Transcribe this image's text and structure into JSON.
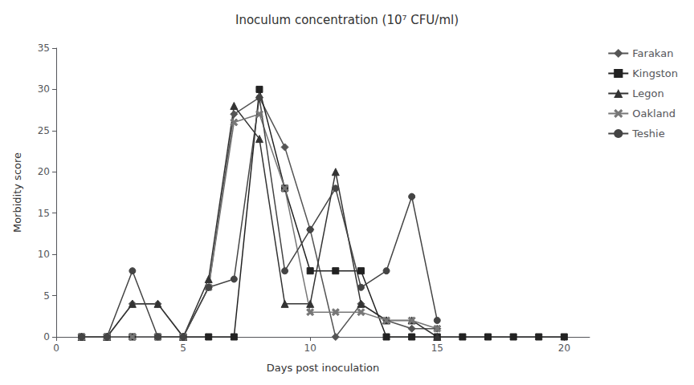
{
  "chart_data": {
    "type": "line",
    "title": "Inoculum concentration (10⁷ CFU/ml)",
    "xlabel": "Days post inoculation",
    "ylabel": "Morbidity score",
    "xlim": [
      0,
      21
    ],
    "ylim": [
      0,
      35
    ],
    "xticks": [
      0,
      5,
      10,
      15,
      20
    ],
    "yticks": [
      0,
      5,
      10,
      15,
      20,
      25,
      30,
      35
    ],
    "grid": false,
    "legend": "right",
    "series": [
      {
        "name": "Farakan",
        "color": "#555555",
        "marker": "diamond",
        "x": [
          1,
          2,
          3,
          4,
          5,
          6,
          7,
          8,
          9,
          10,
          11,
          12,
          13,
          14,
          15
        ],
        "values": [
          0,
          0,
          4,
          4,
          0,
          6,
          27,
          29,
          23,
          13,
          0,
          4,
          2,
          1,
          1
        ]
      },
      {
        "name": "Kingston",
        "color": "#222222",
        "marker": "square",
        "x": [
          1,
          2,
          3,
          4,
          5,
          6,
          7,
          8,
          9,
          10,
          11,
          12,
          13,
          14,
          15,
          16,
          17,
          18,
          19,
          20
        ],
        "values": [
          0,
          0,
          0,
          0,
          0,
          0,
          0,
          30,
          18,
          8,
          8,
          8,
          0,
          0,
          0,
          0,
          0,
          0,
          0,
          0
        ]
      },
      {
        "name": "Legon",
        "color": "#333333",
        "marker": "triangle",
        "x": [
          1,
          2,
          3,
          4,
          5,
          6,
          7,
          8,
          9,
          10,
          11,
          12,
          13,
          14,
          15
        ],
        "values": [
          0,
          0,
          4,
          4,
          0,
          7,
          28,
          24,
          4,
          4,
          20,
          4,
          2,
          2,
          0
        ]
      },
      {
        "name": "Oakland",
        "color": "#777777",
        "marker": "x",
        "x": [
          1,
          2,
          3,
          4,
          5,
          6,
          7,
          8,
          9,
          10,
          11,
          12,
          13,
          14,
          15
        ],
        "values": [
          0,
          0,
          0,
          0,
          0,
          6,
          26,
          27,
          18,
          3,
          3,
          3,
          2,
          2,
          1
        ]
      },
      {
        "name": "Teshie",
        "color": "#444444",
        "marker": "circle",
        "x": [
          1,
          2,
          3,
          4,
          5,
          6,
          7,
          8,
          9,
          10,
          11,
          12,
          13,
          14,
          15
        ],
        "values": [
          0,
          0,
          8,
          0,
          0,
          6,
          7,
          29,
          8,
          13,
          18,
          6,
          8,
          17,
          2
        ]
      }
    ]
  }
}
